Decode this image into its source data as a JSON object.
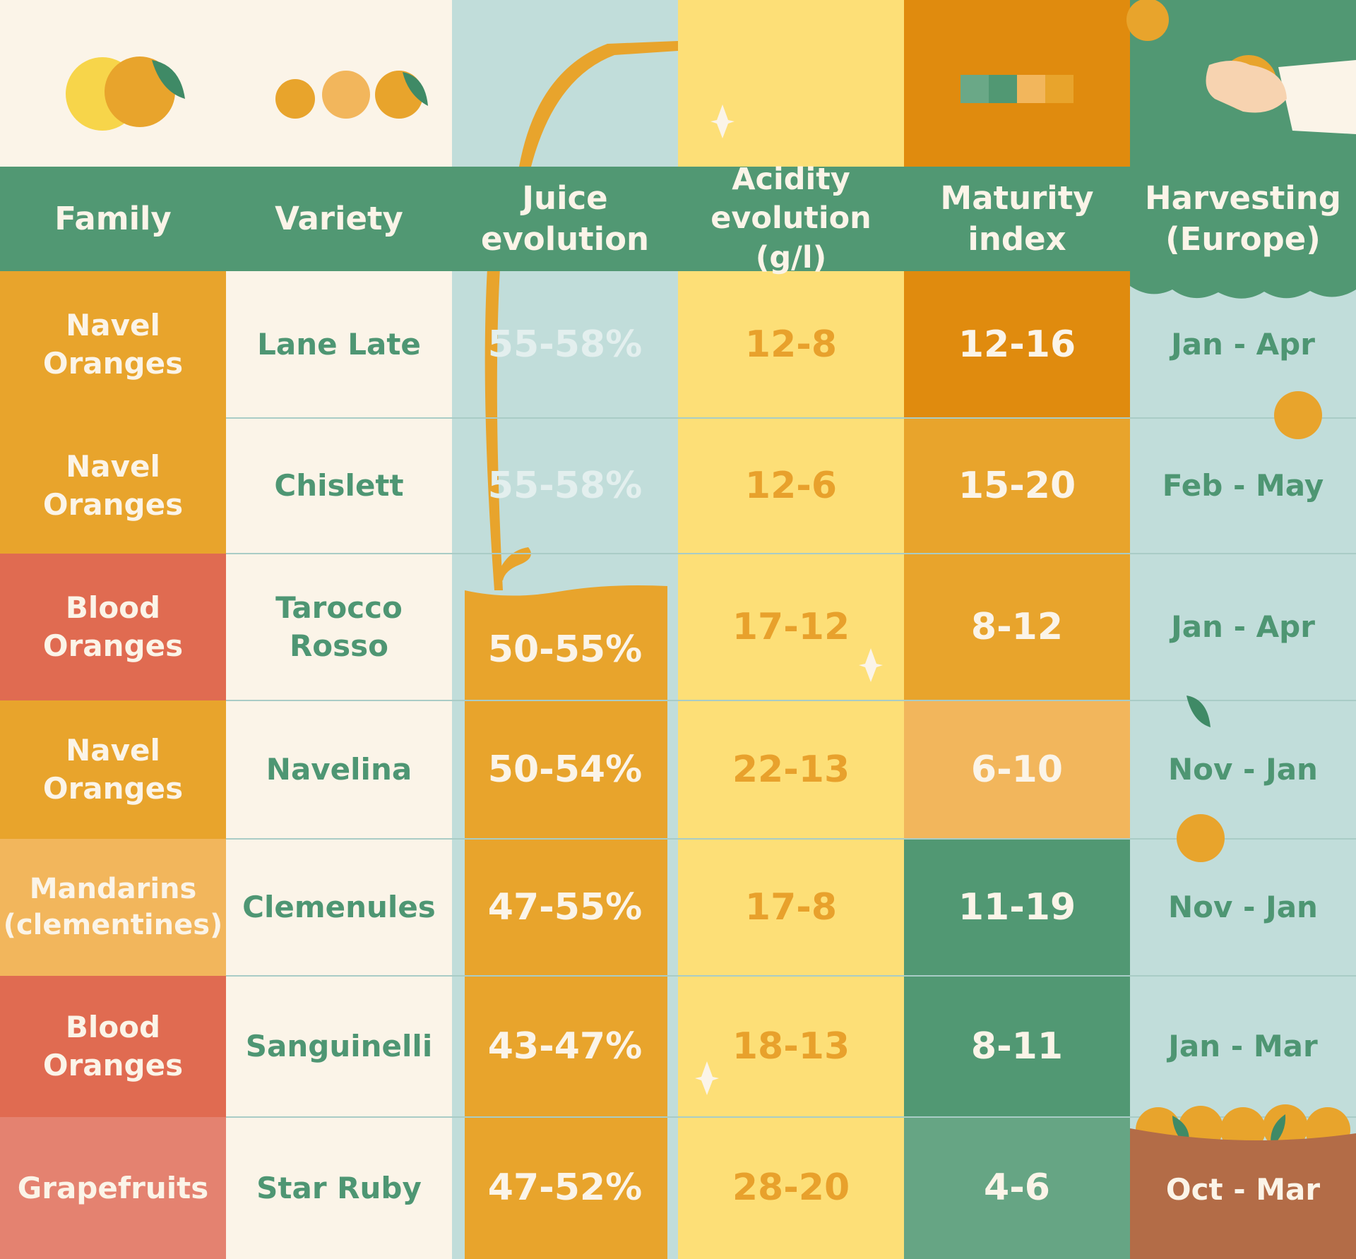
{
  "colors": {
    "green": "#519873",
    "orange": "#e8a42c",
    "dark_orange": "#e08b0e",
    "red": "#e06b51",
    "salmon": "#e48270",
    "light_orange": "#f2b65c",
    "yellow": "#fddf77",
    "pale_blue": "#c1ddda",
    "cream": "#fbf4e8",
    "brown": "#b36c47"
  },
  "headers": {
    "family": "Family",
    "variety": "Variety",
    "juice": "Juice\nevolution",
    "acidity": "Acidity\nevolution (g/l)",
    "maturity": "Maturity\nindex",
    "harvesting": "Harvesting\n(Europe)"
  },
  "rows": [
    {
      "family": "Navel\nOranges",
      "variety": "Lane Late",
      "juice": "55-58%",
      "acidity": "12-8",
      "maturity": "12-16",
      "harvesting": "Jan - Apr"
    },
    {
      "family": "Navel\nOranges",
      "variety": "Chislett",
      "juice": "55-58%",
      "acidity": "12-6",
      "maturity": "15-20",
      "harvesting": "Feb - May"
    },
    {
      "family": "Blood\nOranges",
      "variety": "Tarocco\nRosso",
      "juice": "50-55%",
      "acidity": "17-12",
      "maturity": "8-12",
      "harvesting": "Jan - Apr"
    },
    {
      "family": "Navel\nOranges",
      "variety": "Navelina",
      "juice": "50-54%",
      "acidity": "22-13",
      "maturity": "6-10",
      "harvesting": "Nov - Jan"
    },
    {
      "family": "Mandarins\n(clementines)",
      "variety": "Clemenules",
      "juice": "47-55%",
      "acidity": "17-8",
      "maturity": "11-19",
      "harvesting": "Nov - Jan"
    },
    {
      "family": "Blood\nOranges",
      "variety": "Sanguinelli",
      "juice": "43-47%",
      "acidity": "18-13",
      "maturity": "8-11",
      "harvesting": "Jan - Mar"
    },
    {
      "family": "Grapefruits",
      "variety": "Star Ruby",
      "juice": "47-52%",
      "acidity": "28-20",
      "maturity": "4-6",
      "harvesting": "Oct - Mar"
    }
  ]
}
